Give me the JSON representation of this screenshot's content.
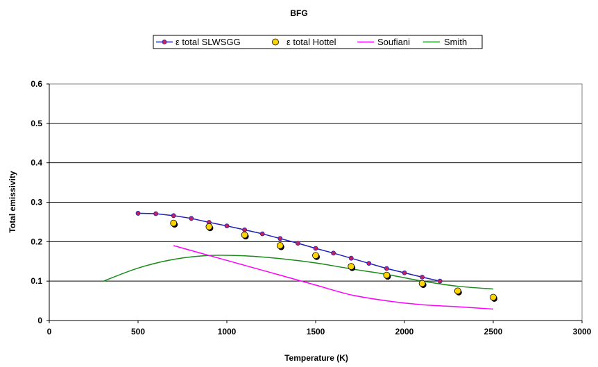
{
  "chart_data": {
    "type": "line",
    "title": "BFG",
    "xlabel": "Temperature (K)",
    "ylabel": "Total emissivity",
    "xlim": [
      0,
      3000
    ],
    "ylim": [
      0,
      0.6
    ],
    "xticks": [
      0,
      500,
      1000,
      1500,
      2000,
      2500,
      3000
    ],
    "yticks": [
      0,
      0.1,
      0.2,
      0.3,
      0.4,
      0.5,
      0.6
    ],
    "xtick_labels": [
      "0",
      "500",
      "1000",
      "1500",
      "2000",
      "2500",
      "3000"
    ],
    "ytick_labels": [
      "0",
      "0.1",
      "0.2",
      "0.3",
      "0.4",
      "0.5",
      "0.6"
    ],
    "grid": "horizontal",
    "legend_position": "top",
    "series": [
      {
        "name": "ε total SLWSGG",
        "style": "line-markers",
        "color": "#1f1fb8",
        "marker_color": "#c8205a",
        "x": [
          500,
          600,
          700,
          800,
          900,
          1000,
          1100,
          1200,
          1300,
          1400,
          1500,
          1600,
          1700,
          1800,
          1900,
          2000,
          2100,
          2200
        ],
        "y": [
          0.272,
          0.271,
          0.266,
          0.259,
          0.249,
          0.24,
          0.23,
          0.22,
          0.208,
          0.196,
          0.183,
          0.171,
          0.158,
          0.145,
          0.132,
          0.121,
          0.11,
          0.1
        ]
      },
      {
        "name": "ε total Hottel",
        "style": "markers",
        "color": "#ffd400",
        "x": [
          700,
          900,
          1100,
          1300,
          1500,
          1700,
          1900,
          2100,
          2300,
          2500
        ],
        "y": [
          0.247,
          0.238,
          0.217,
          0.19,
          0.165,
          0.137,
          0.115,
          0.094,
          0.075,
          0.059
        ]
      },
      {
        "name": "Soufiani",
        "style": "line",
        "color": "#ff00ff",
        "x": [
          700,
          900,
          1100,
          1300,
          1500,
          1700,
          1900,
          2100,
          2300,
          2500
        ],
        "y": [
          0.19,
          0.165,
          0.14,
          0.115,
          0.09,
          0.065,
          0.05,
          0.04,
          0.035,
          0.029
        ]
      },
      {
        "name": "Smith",
        "style": "line",
        "color": "#1a8a1a",
        "x": [
          300,
          500,
          700,
          900,
          1100,
          1300,
          1500,
          1700,
          1900,
          2100,
          2300,
          2500
        ],
        "y": [
          0.099,
          0.133,
          0.155,
          0.165,
          0.164,
          0.157,
          0.146,
          0.131,
          0.117,
          0.1,
          0.087,
          0.08
        ]
      }
    ]
  }
}
